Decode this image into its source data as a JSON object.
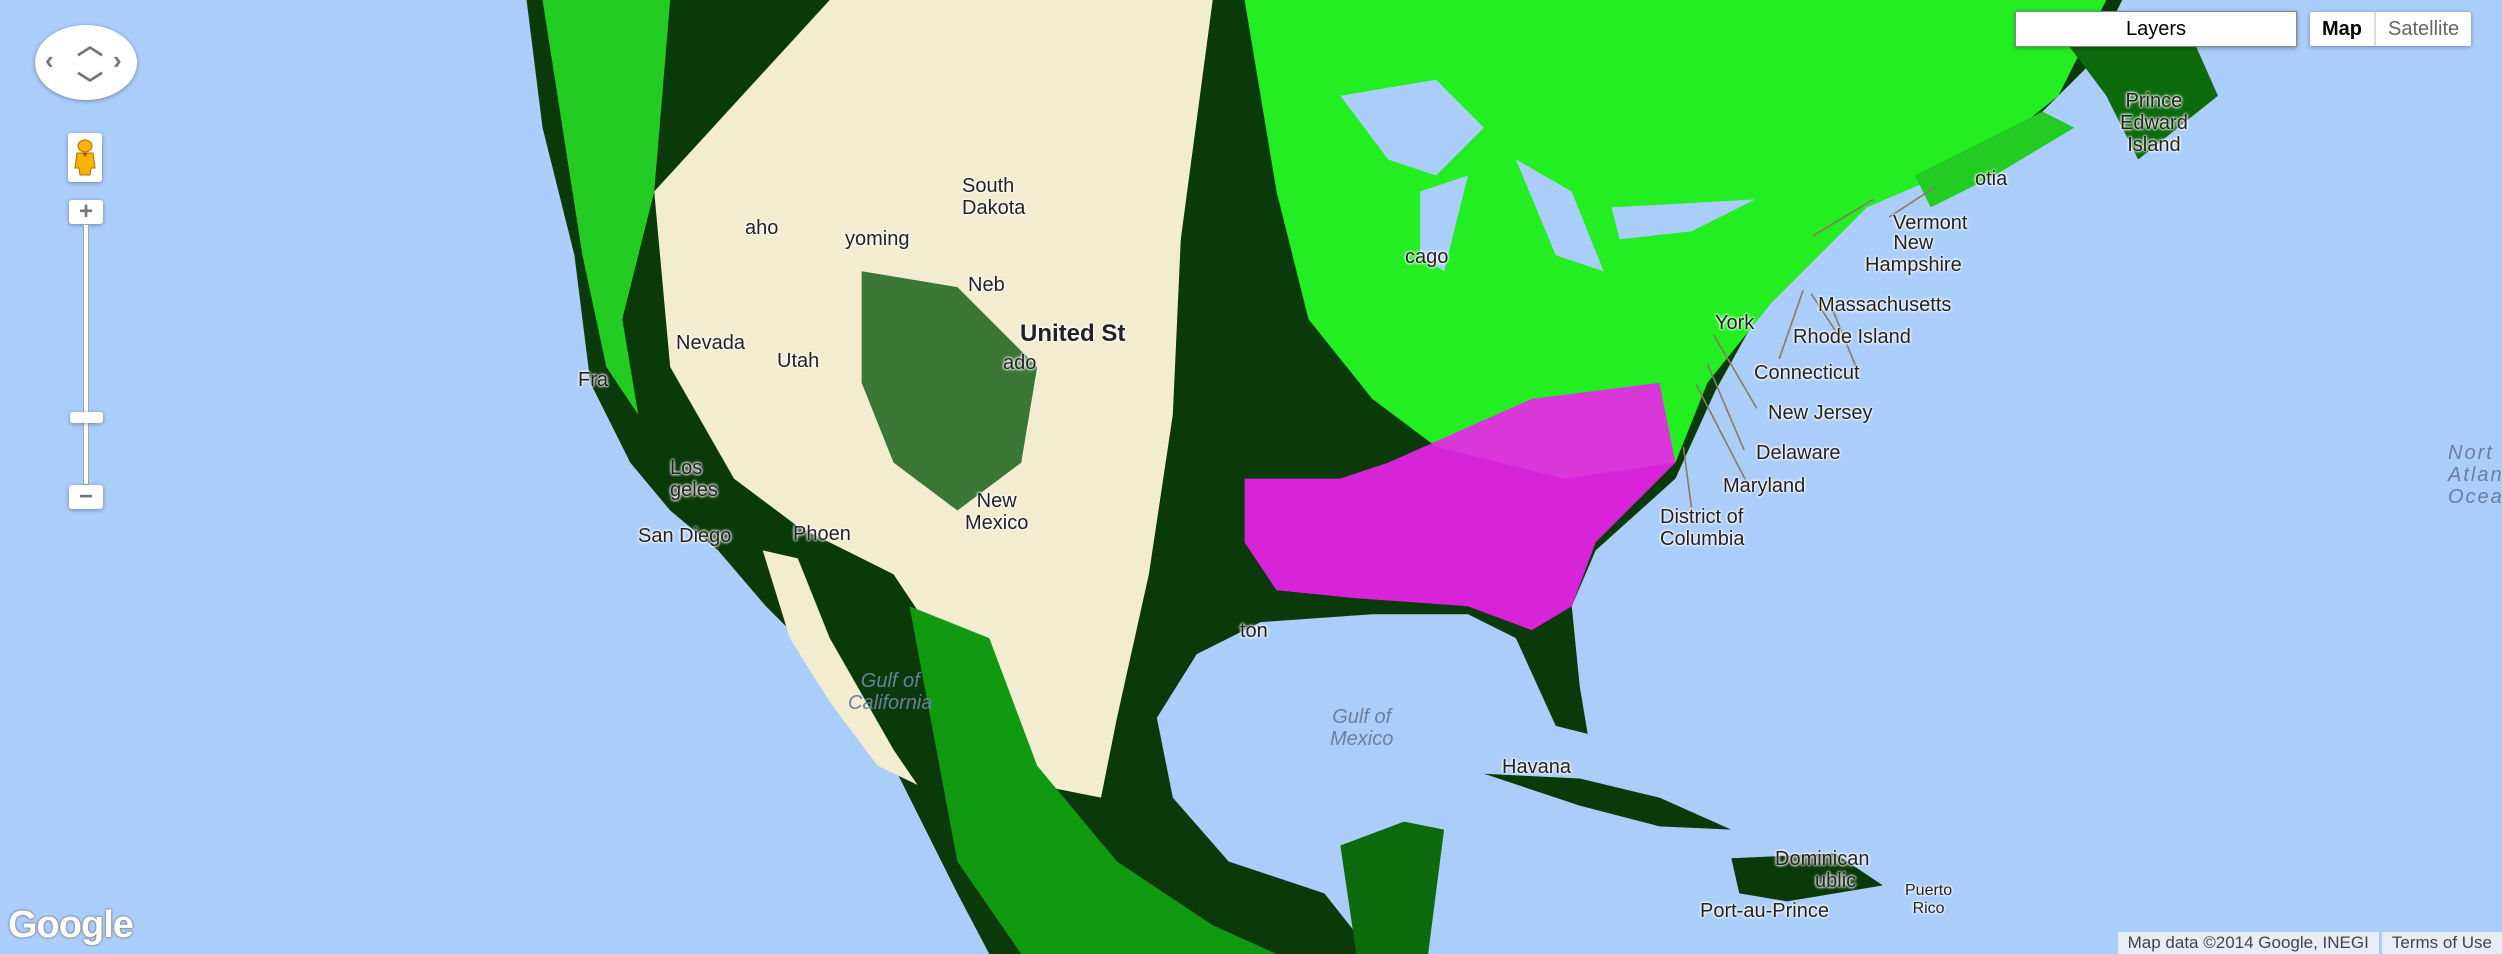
{
  "controls": {
    "layers_label": "Layers",
    "map_type": {
      "options": [
        "Map",
        "Satellite"
      ],
      "selected": "Map"
    },
    "zoom_in": "+",
    "zoom_out": "−",
    "zoom_level_fraction": 0.77
  },
  "labels": {
    "prince_edward_island": [
      "Prince",
      "Edward",
      "Island"
    ],
    "nova_scotia": "otia",
    "vermont": "Vermont",
    "new_hampshire": [
      "New",
      "Hampshire"
    ],
    "massachusetts": "Massachusetts",
    "rhode_island": "Rhode Island",
    "connecticut": "Connecticut",
    "new_york": "York",
    "new_jersey": "New Jersey",
    "delaware": "Delaware",
    "maryland": "Maryland",
    "dc": [
      "District of",
      "Columbia"
    ],
    "north_atlantic": [
      "Nort",
      "Atlan",
      "Ocea"
    ],
    "gulf_of_mexico": [
      "Gulf of",
      "Mexico"
    ],
    "havana": "Havana",
    "dominican_republic": [
      "Dominican",
      "ublic"
    ],
    "puerto_rico": [
      "Puerto",
      "Rico"
    ],
    "port_au_prince": "Port-au-Prince",
    "san_diego": "San Diego",
    "gulf_of_california": [
      "Gulf of",
      "California"
    ],
    "united_states": "United St",
    "new_mexico": [
      "New",
      "Mexico"
    ],
    "phoenix": "Phoen",
    "wyoming": "yoming",
    "idaho": "aho",
    "south_dakota": [
      "South",
      "Dakota"
    ],
    "nebraska": "Neb",
    "colorado": "ado",
    "nevada": "Nevada",
    "utah": "Utah",
    "los_angeles": [
      "Los",
      "geles"
    ],
    "san_francisco": "Fra",
    "houston": "ton",
    "chicago": "cago"
  },
  "colors": {
    "water": "#abcdf9",
    "desert": "#f2ecd0",
    "dark_veg": "#003300",
    "bright_veg": "#22ee22",
    "magenta": "#ff22ff",
    "red": "#ff0000",
    "blue": "#0000ff"
  },
  "footer": {
    "logo": "Google",
    "attribution": "Map data ©2014 Google, INEGI",
    "terms": "Terms of Use"
  }
}
